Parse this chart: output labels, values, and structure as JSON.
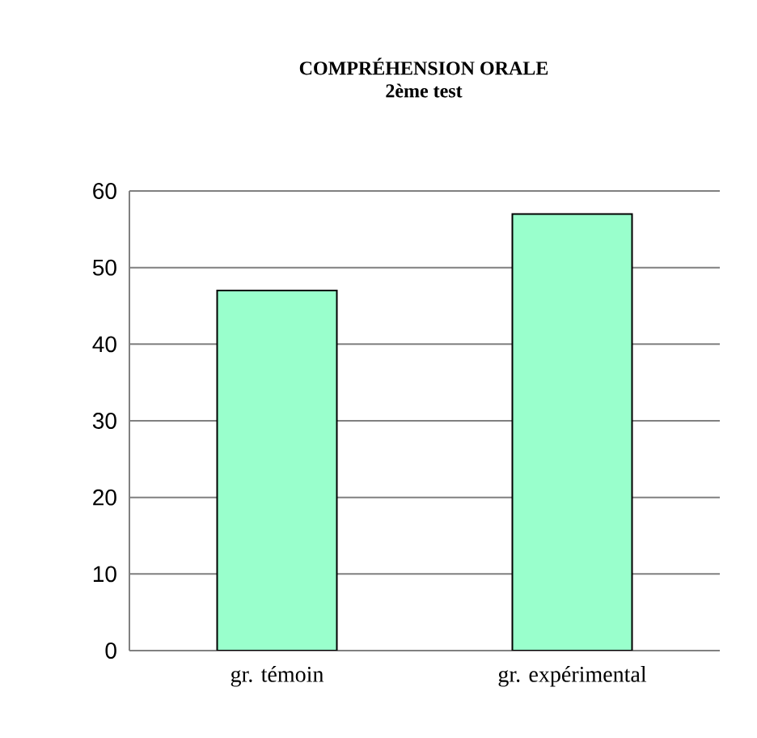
{
  "chart_data": {
    "type": "bar",
    "title": "COMPRÉHENSION ORALE",
    "subtitle": "2ème test",
    "categories": [
      "gr. témoin",
      "gr. expérimental"
    ],
    "values": [
      47,
      57
    ],
    "color": "#99ffcc",
    "ylim": [
      0,
      60
    ],
    "yticks": [
      0,
      10,
      20,
      30,
      40,
      50,
      60
    ],
    "grid": "y"
  }
}
